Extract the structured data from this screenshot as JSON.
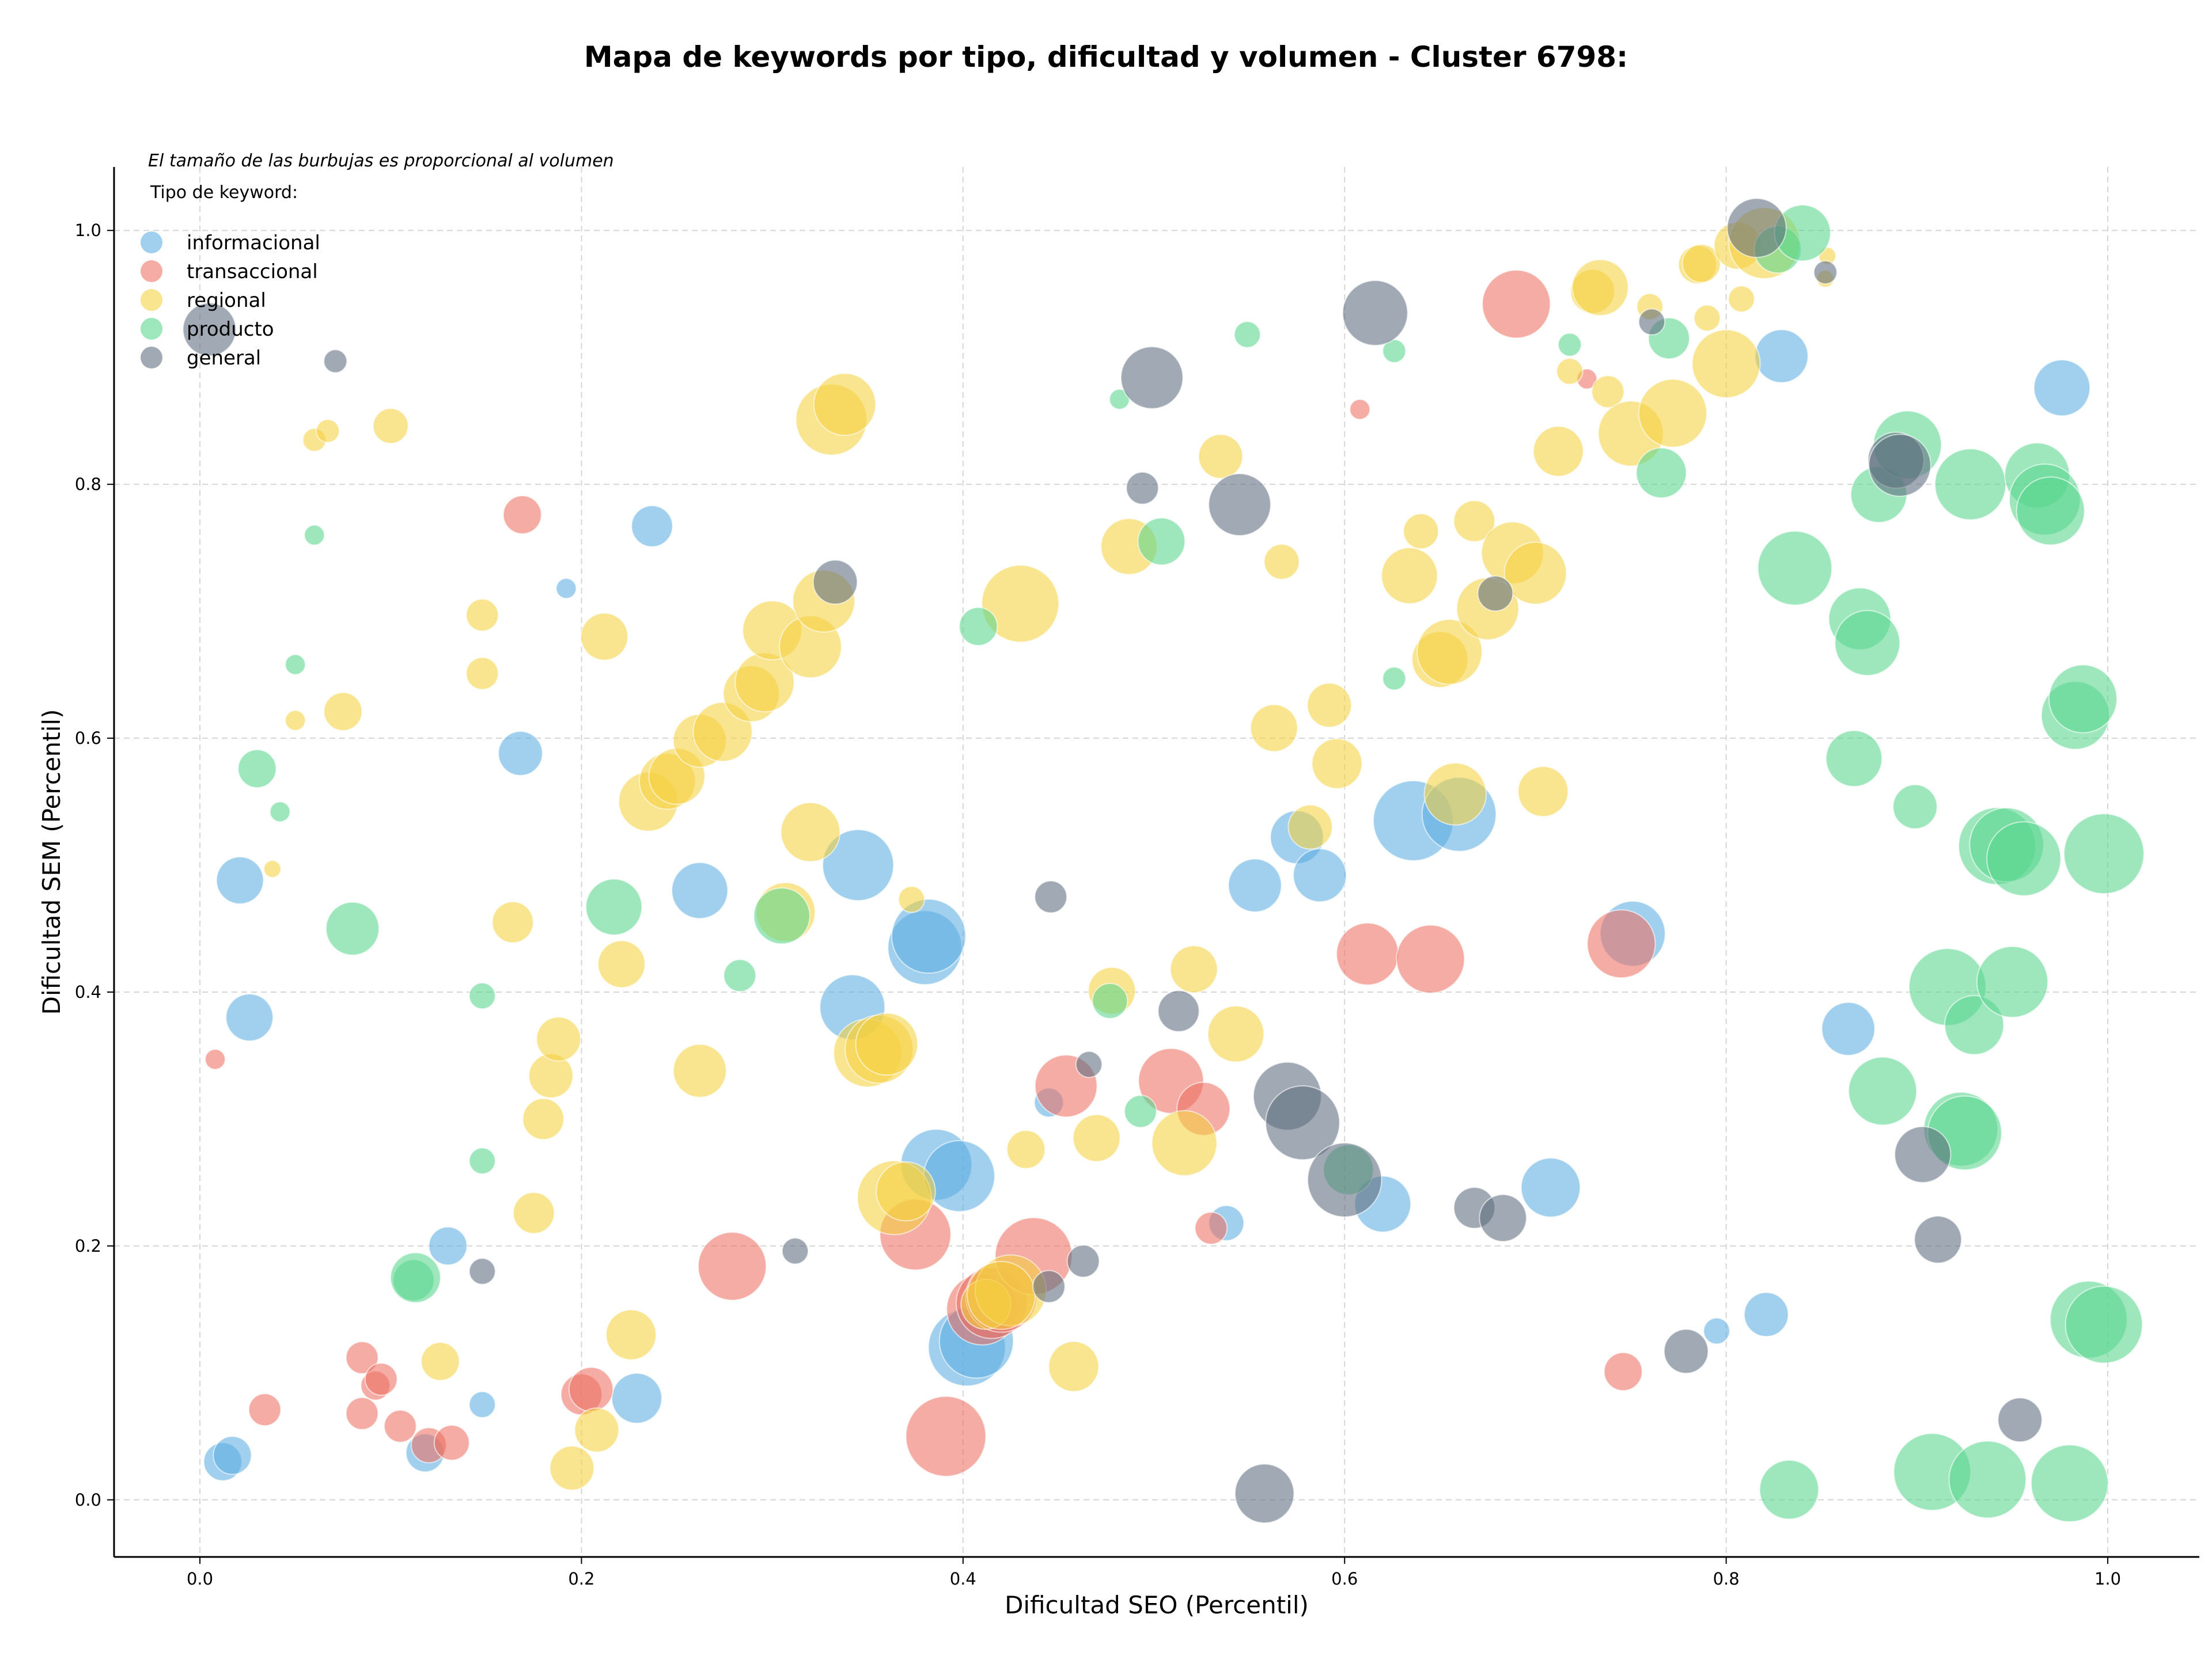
{
  "chart_data": {
    "type": "scatter",
    "title": "Mapa de keywords por tipo, dificultad y volumen - Cluster 6798:",
    "xlabel": "Dificultad SEO (Percentil)",
    "ylabel": "Dificultad SEM (Percentil)",
    "note": "El tamaño de las burbujas es proporcional al volumen",
    "legend_title": "Tipo de keyword:",
    "legend_position": "top-left",
    "grid": true,
    "xlim": [
      -0.045,
      1.048
    ],
    "ylim": [
      -0.045,
      1.05
    ],
    "xticks": [
      "0.0",
      "0.2",
      "0.4",
      "0.6",
      "0.8",
      "1.0"
    ],
    "yticks": [
      "0.0",
      "0.2",
      "0.4",
      "0.6",
      "0.8",
      "1.0"
    ],
    "series": [
      {
        "name": "informacional",
        "color": "#5DADE2",
        "points": [
          [
            0.012,
            0.03,
            1
          ],
          [
            0.017,
            0.035,
            1
          ],
          [
            0.021,
            0.488,
            1.3
          ],
          [
            0.026,
            0.38,
            1.3
          ],
          [
            0.118,
            0.037,
            1
          ],
          [
            0.13,
            0.2,
            1
          ],
          [
            0.148,
            0.075,
            0.6
          ],
          [
            0.168,
            0.588,
            1.2
          ],
          [
            0.192,
            0.718,
            0.4
          ],
          [
            0.237,
            0.767,
            1.1
          ],
          [
            0.229,
            0.08,
            1.4
          ],
          [
            0.262,
            0.48,
            1.6
          ],
          [
            0.345,
            0.5,
            2.1
          ],
          [
            0.342,
            0.388,
            1.9
          ],
          [
            0.38,
            0.435,
            2.2
          ],
          [
            0.382,
            0.444,
            2.2
          ],
          [
            0.386,
            0.264,
            2.1
          ],
          [
            0.398,
            0.255,
            2.1
          ],
          [
            0.402,
            0.12,
            2.3
          ],
          [
            0.407,
            0.125,
            2.2
          ],
          [
            0.445,
            0.313,
            0.7
          ],
          [
            0.538,
            0.218,
            0.9
          ],
          [
            0.553,
            0.484,
            1.5
          ],
          [
            0.575,
            0.522,
            1.5
          ],
          [
            0.587,
            0.492,
            1.5
          ],
          [
            0.62,
            0.233,
            1.6
          ],
          [
            0.636,
            0.535,
            2.4
          ],
          [
            0.66,
            0.54,
            2.2
          ],
          [
            0.708,
            0.246,
            1.7
          ],
          [
            0.751,
            0.446,
            1.9
          ],
          [
            0.795,
            0.133,
            0.6
          ],
          [
            0.821,
            0.146,
            1.2
          ],
          [
            0.829,
            0.901,
            1.5
          ],
          [
            0.864,
            0.371,
            1.5
          ],
          [
            0.976,
            0.876,
            1.6
          ]
        ]
      },
      {
        "name": "transaccional",
        "color": "#EC7063",
        "points": [
          [
            0.008,
            0.347,
            0.4
          ],
          [
            0.034,
            0.071,
            0.8
          ],
          [
            0.085,
            0.112,
            0.8
          ],
          [
            0.085,
            0.068,
            0.8
          ],
          [
            0.092,
            0.09,
            0.7
          ],
          [
            0.095,
            0.095,
            0.8
          ],
          [
            0.105,
            0.058,
            0.8
          ],
          [
            0.12,
            0.043,
            0.9
          ],
          [
            0.132,
            0.045,
            0.9
          ],
          [
            0.169,
            0.776,
            1
          ],
          [
            0.2,
            0.083,
            1.1
          ],
          [
            0.205,
            0.087,
            1.2
          ],
          [
            0.279,
            0.184,
            2
          ],
          [
            0.375,
            0.209,
            2.1
          ],
          [
            0.391,
            0.05,
            2.4
          ],
          [
            0.41,
            0.15,
            2.1
          ],
          [
            0.415,
            0.155,
            2.1
          ],
          [
            0.42,
            0.16,
            2.1
          ],
          [
            0.437,
            0.192,
            2.3
          ],
          [
            0.454,
            0.326,
            1.8
          ],
          [
            0.509,
            0.33,
            1.9
          ],
          [
            0.526,
            0.308,
            1.5
          ],
          [
            0.53,
            0.214,
            0.8
          ],
          [
            0.608,
            0.859,
            0.4
          ],
          [
            0.612,
            0.43,
            1.8
          ],
          [
            0.645,
            0.426,
            2
          ],
          [
            0.69,
            0.942,
            2
          ],
          [
            0.727,
            0.883,
            0.4
          ],
          [
            0.745,
            0.438,
            2
          ],
          [
            0.746,
            0.101,
            1
          ]
        ]
      },
      {
        "name": "regional",
        "color": "#F4D03F",
        "points": [
          [
            0.038,
            0.497,
            0.3
          ],
          [
            0.05,
            0.614,
            0.4
          ],
          [
            0.06,
            0.835,
            0.5
          ],
          [
            0.067,
            0.842,
            0.5
          ],
          [
            0.075,
            0.621,
            1
          ],
          [
            0.1,
            0.846,
            0.9
          ],
          [
            0.126,
            0.109,
            1
          ],
          [
            0.148,
            0.697,
            0.8
          ],
          [
            0.148,
            0.651,
            0.8
          ],
          [
            0.164,
            0.455,
            1.1
          ],
          [
            0.175,
            0.226,
            1.1
          ],
          [
            0.18,
            0.3,
            1.1
          ],
          [
            0.184,
            0.334,
            1.2
          ],
          [
            0.188,
            0.363,
            1.2
          ],
          [
            0.195,
            0.025,
            1.2
          ],
          [
            0.208,
            0.055,
            1.2
          ],
          [
            0.212,
            0.68,
            1.3
          ],
          [
            0.221,
            0.422,
            1.3
          ],
          [
            0.226,
            0.13,
            1.4
          ],
          [
            0.235,
            0.55,
            1.7
          ],
          [
            0.245,
            0.566,
            1.6
          ],
          [
            0.25,
            0.57,
            1.6
          ],
          [
            0.262,
            0.598,
            1.5
          ],
          [
            0.262,
            0.338,
            1.5
          ],
          [
            0.274,
            0.605,
            1.7
          ],
          [
            0.289,
            0.635,
            1.6
          ],
          [
            0.296,
            0.644,
            1.7
          ],
          [
            0.3,
            0.685,
            1.7
          ],
          [
            0.307,
            0.463,
            1.7
          ],
          [
            0.32,
            0.672,
            1.8
          ],
          [
            0.32,
            0.526,
            1.7
          ],
          [
            0.327,
            0.708,
            1.8
          ],
          [
            0.331,
            0.851,
            2.1
          ],
          [
            0.338,
            0.863,
            1.8
          ],
          [
            0.35,
            0.352,
            2
          ],
          [
            0.356,
            0.355,
            2
          ],
          [
            0.36,
            0.359,
            1.8
          ],
          [
            0.364,
            0.238,
            2.2
          ],
          [
            0.37,
            0.243,
            1.7
          ],
          [
            0.373,
            0.473,
            0.6
          ],
          [
            0.412,
            0.154,
            1.4
          ],
          [
            0.425,
            0.165,
            2.1
          ],
          [
            0.42,
            0.161,
            2
          ],
          [
            0.43,
            0.706,
            2.3
          ],
          [
            0.433,
            0.276,
            1
          ],
          [
            0.458,
            0.105,
            1.4
          ],
          [
            0.47,
            0.285,
            1.3
          ],
          [
            0.478,
            0.401,
            1.3
          ],
          [
            0.487,
            0.751,
            1.6
          ],
          [
            0.516,
            0.281,
            1.9
          ],
          [
            0.521,
            0.418,
            1.3
          ],
          [
            0.535,
            0.822,
            1.2
          ],
          [
            0.543,
            0.367,
            1.6
          ],
          [
            0.563,
            0.608,
            1.3
          ],
          [
            0.567,
            0.739,
            0.9
          ],
          [
            0.582,
            0.53,
            1.2
          ],
          [
            0.592,
            0.626,
            1.2
          ],
          [
            0.596,
            0.58,
            1.4
          ],
          [
            0.634,
            0.728,
            1.6
          ],
          [
            0.64,
            0.763,
            0.9
          ],
          [
            0.65,
            0.662,
            1.6
          ],
          [
            0.655,
            0.668,
            1.9
          ],
          [
            0.658,
            0.556,
            1.8
          ],
          [
            0.668,
            0.771,
            1.1
          ],
          [
            0.675,
            0.702,
            1.8
          ],
          [
            0.688,
            0.746,
            1.8
          ],
          [
            0.7,
            0.73,
            1.8
          ],
          [
            0.704,
            0.558,
            1.4
          ],
          [
            0.712,
            0.826,
            1.4
          ],
          [
            0.718,
            0.889,
            0.6
          ],
          [
            0.73,
            0.952,
            1.2
          ],
          [
            0.734,
            0.955,
            1.6
          ],
          [
            0.738,
            0.873,
            0.8
          ],
          [
            0.75,
            0.84,
            1.9
          ],
          [
            0.76,
            0.94,
            0.6
          ],
          [
            0.772,
            0.856,
            2
          ],
          [
            0.785,
            0.973,
            1
          ],
          [
            0.787,
            0.974,
            1
          ],
          [
            0.79,
            0.931,
            0.6
          ],
          [
            0.8,
            0.895,
            2
          ],
          [
            0.806,
            0.988,
            1.3
          ],
          [
            0.808,
            0.946,
            0.6
          ],
          [
            0.82,
            0.99,
            2.1
          ],
          [
            0.853,
            0.98,
            0.3
          ],
          [
            0.852,
            0.962,
            0.3
          ]
        ]
      },
      {
        "name": "producto",
        "color": "#58D68D",
        "points": [
          [
            0.06,
            0.76,
            0.4
          ],
          [
            0.03,
            0.576,
            1
          ],
          [
            0.042,
            0.542,
            0.4
          ],
          [
            0.05,
            0.658,
            0.4
          ],
          [
            0.08,
            0.45,
            1.5
          ],
          [
            0.112,
            0.173,
            1.1
          ],
          [
            0.113,
            0.175,
            1.4
          ],
          [
            0.148,
            0.397,
            0.6
          ],
          [
            0.148,
            0.267,
            0.6
          ],
          [
            0.217,
            0.467,
            1.6
          ],
          [
            0.283,
            0.413,
            0.8
          ],
          [
            0.305,
            0.46,
            1.6
          ],
          [
            0.408,
            0.688,
            1
          ],
          [
            0.477,
            0.393,
            0.9
          ],
          [
            0.493,
            0.306,
            0.8
          ],
          [
            0.482,
            0.867,
            0.4
          ],
          [
            0.504,
            0.755,
            1.3
          ],
          [
            0.549,
            0.918,
            0.6
          ],
          [
            0.602,
            0.26,
            1.4
          ],
          [
            0.626,
            0.905,
            0.5
          ],
          [
            0.626,
            0.647,
            0.5
          ],
          [
            0.718,
            0.91,
            0.5
          ],
          [
            0.766,
            0.809,
            1.4
          ],
          [
            0.77,
            0.915,
            1.1
          ],
          [
            0.827,
            0.985,
            1.3
          ],
          [
            0.84,
            0.998,
            1.6
          ],
          [
            0.836,
            0.734,
            2.2
          ],
          [
            0.833,
            0.008,
            1.7
          ],
          [
            0.867,
            0.584,
            1.6
          ],
          [
            0.87,
            0.694,
            1.8
          ],
          [
            0.874,
            0.675,
            1.9
          ],
          [
            0.88,
            0.792,
            1.6
          ],
          [
            0.882,
            0.322,
            2
          ],
          [
            0.895,
            0.831,
            2
          ],
          [
            0.899,
            0.546,
            1.2
          ],
          [
            0.908,
            0.022,
            2.3
          ],
          [
            0.916,
            0.404,
            2.3
          ],
          [
            0.923,
            0.292,
            2.2
          ],
          [
            0.925,
            0.289,
            2.2
          ],
          [
            0.93,
            0.374,
            1.7
          ],
          [
            0.928,
            0.8,
            2.1
          ],
          [
            0.937,
            0.016,
            2.3
          ],
          [
            0.942,
            0.515,
            2.3
          ],
          [
            0.947,
            0.516,
            2.2
          ],
          [
            0.95,
            0.408,
            2.1
          ],
          [
            0.956,
            0.505,
            2.2
          ],
          [
            0.963,
            0.807,
            1.9
          ],
          [
            0.967,
            0.788,
            2.1
          ],
          [
            0.97,
            0.779,
            2
          ],
          [
            0.98,
            0.013,
            2.3
          ],
          [
            0.983,
            0.618,
            2
          ],
          [
            0.987,
            0.631,
            2
          ],
          [
            0.99,
            0.142,
            2.3
          ],
          [
            0.998,
            0.138,
            2.3
          ],
          [
            0.998,
            0.509,
            2.4
          ]
        ]
      },
      {
        "name": "general",
        "color": "#5D6D7E",
        "points": [
          [
            0.005,
            0.922,
            1.5
          ],
          [
            0.071,
            0.897,
            0.5
          ],
          [
            0.148,
            0.18,
            0.6
          ],
          [
            0.312,
            0.196,
            0.6
          ],
          [
            0.333,
            0.723,
            1.2
          ],
          [
            0.445,
            0.168,
            0.8
          ],
          [
            0.446,
            0.475,
            0.8
          ],
          [
            0.466,
            0.343,
            0.6
          ],
          [
            0.463,
            0.188,
            0.8
          ],
          [
            0.494,
            0.797,
            0.8
          ],
          [
            0.499,
            0.884,
            1.8
          ],
          [
            0.513,
            0.385,
            1.1
          ],
          [
            0.545,
            0.784,
            1.8
          ],
          [
            0.558,
            0.005,
            1.7
          ],
          [
            0.57,
            0.318,
            2
          ],
          [
            0.578,
            0.297,
            2.2
          ],
          [
            0.6,
            0.252,
            2.2
          ],
          [
            0.616,
            0.935,
            1.9
          ],
          [
            0.668,
            0.23,
            1.1
          ],
          [
            0.679,
            0.714,
            0.9
          ],
          [
            0.683,
            0.222,
            1.3
          ],
          [
            0.761,
            0.928,
            0.6
          ],
          [
            0.779,
            0.117,
            1.2
          ],
          [
            0.816,
            1.002,
            1.7
          ],
          [
            0.852,
            0.967,
            0.5
          ],
          [
            0.889,
            0.819,
            1.6
          ],
          [
            0.891,
            0.815,
            1.8
          ],
          [
            0.903,
            0.272,
            1.6
          ],
          [
            0.911,
            0.205,
            1.3
          ],
          [
            0.954,
            0.063,
            1.2
          ]
        ]
      }
    ]
  }
}
